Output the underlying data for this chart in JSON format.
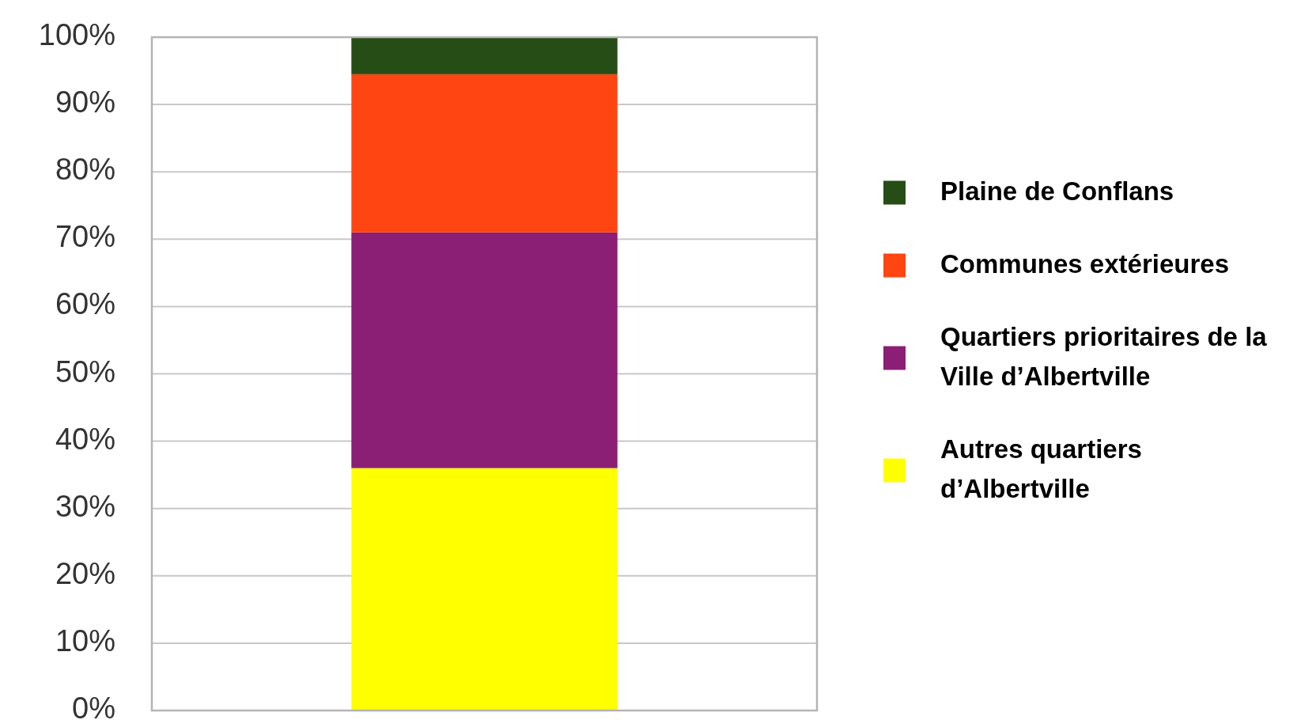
{
  "chart_data": {
    "type": "bar",
    "stacked": true,
    "categories": [
      null
    ],
    "series": [
      {
        "name": "Autres quartiers d’Albertville",
        "color": "#ffff00",
        "values": [
          36
        ]
      },
      {
        "name": "Quartiers prioritaires de la Ville d’Albertville",
        "color": "#8b1e75",
        "values": [
          35
        ]
      },
      {
        "name": "Communes extérieures",
        "color": "#ff4511",
        "values": [
          23.5
        ]
      },
      {
        "name": "Plaine de Conflans",
        "color": "#254d15",
        "values": [
          5.5
        ]
      }
    ],
    "ylim": [
      0,
      100
    ],
    "yticks": [
      {
        "value": 0,
        "label": "0%"
      },
      {
        "value": 10,
        "label": "10%"
      },
      {
        "value": 20,
        "label": "20%"
      },
      {
        "value": 30,
        "label": "30%"
      },
      {
        "value": 40,
        "label": "40%"
      },
      {
        "value": 50,
        "label": "50%"
      },
      {
        "value": 60,
        "label": "60%"
      },
      {
        "value": 70,
        "label": "70%"
      },
      {
        "value": 80,
        "label": "80%"
      },
      {
        "value": 90,
        "label": "90%"
      },
      {
        "value": 100,
        "label": "100%"
      }
    ],
    "grid": "y",
    "legend": "right"
  }
}
